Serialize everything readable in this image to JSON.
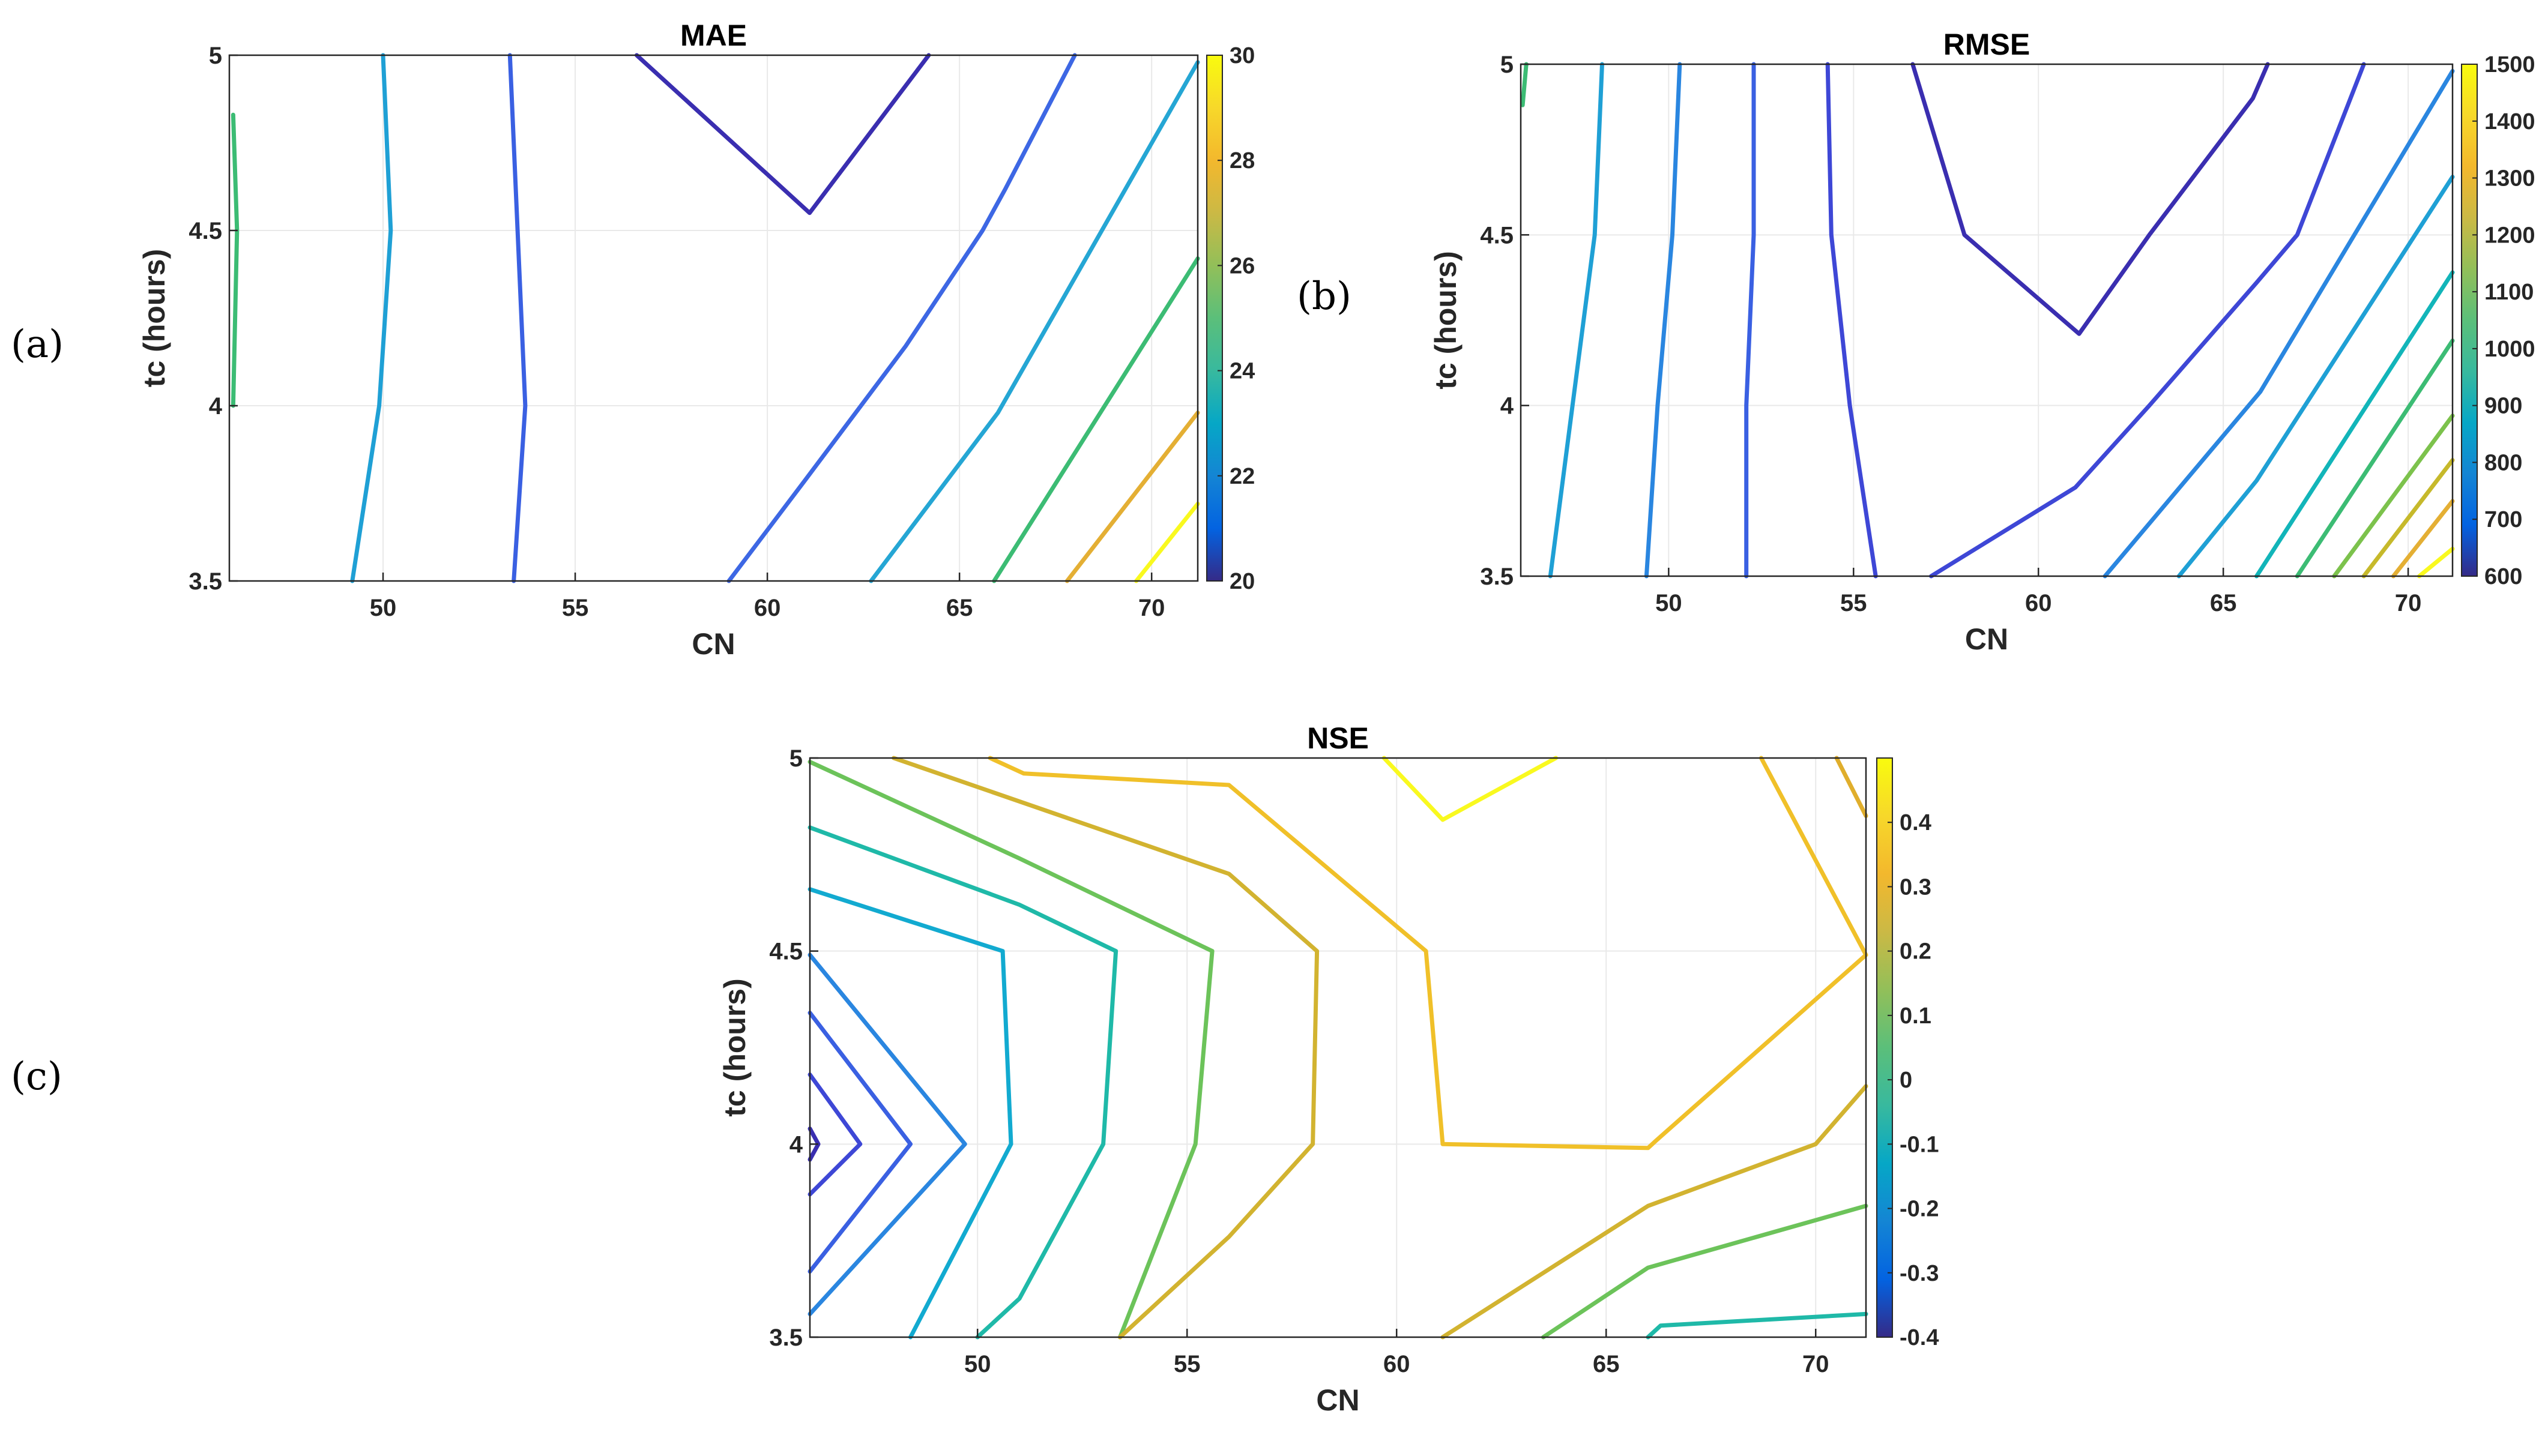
{
  "panel_labels": [
    "(a)",
    "(b)",
    "(c)"
  ],
  "chart_data": [
    {
      "type": "contour",
      "panel": "(a)",
      "title": "MAE",
      "xlabel": "CN",
      "ylabel": "tc (hours)",
      "xlim": [
        46,
        71.2
      ],
      "ylim": [
        3.5,
        5
      ],
      "xticks": [
        "50",
        "55",
        "60",
        "65",
        "70"
      ],
      "yticks": [
        "3.5",
        "4",
        "4.5",
        "5"
      ],
      "colorbar": {
        "min": 20,
        "max": 30,
        "ticks": [
          "20",
          "22",
          "24",
          "26",
          "28",
          "30"
        ]
      },
      "contours": [
        {
          "level": 26,
          "color": "#3cbc74",
          "points": [
            [
              46.1,
              4.83
            ],
            [
              46.2,
              4.5
            ],
            [
              46.1,
              4.0
            ]
          ]
        },
        {
          "level": 23.5,
          "color": "#1fa0d5",
          "points": [
            [
              50.0,
              5.0
            ],
            [
              50.2,
              4.5
            ],
            [
              49.9,
              4.0
            ],
            [
              49.2,
              3.5
            ]
          ]
        },
        {
          "level": 21.5,
          "color": "#3a60e2",
          "points": [
            [
              53.3,
              5.0
            ],
            [
              53.5,
              4.5
            ],
            [
              53.7,
              4.0
            ],
            [
              53.4,
              3.5
            ]
          ]
        },
        {
          "level": 20.5,
          "color": "#3a2eb0",
          "points": [
            [
              56.6,
              5.0
            ],
            [
              61.1,
              4.55
            ],
            [
              64.2,
              5.0
            ]
          ]
        },
        {
          "level": 22,
          "color": "#3d67e4",
          "points": [
            [
              59.0,
              3.5
            ],
            [
              61.0,
              3.79
            ],
            [
              63.6,
              4.17
            ],
            [
              65.6,
              4.5
            ],
            [
              66.2,
              4.62
            ],
            [
              68.0,
              5.0
            ]
          ]
        },
        {
          "level": 24,
          "color": "#25a6d4",
          "points": [
            [
              62.7,
              3.5
            ],
            [
              66.0,
              3.98
            ],
            [
              71.2,
              4.98
            ]
          ]
        },
        {
          "level": 26,
          "color": "#3cbc74",
          "points": [
            [
              65.9,
              3.5
            ],
            [
              71.2,
              4.42
            ]
          ]
        },
        {
          "level": 28,
          "color": "#e4af34",
          "points": [
            [
              67.8,
              3.5
            ],
            [
              71.2,
              3.98
            ]
          ]
        },
        {
          "level": 30,
          "color": "#f9f91f",
          "points": [
            [
              69.6,
              3.5
            ],
            [
              71.2,
              3.72
            ]
          ]
        }
      ]
    },
    {
      "type": "contour",
      "panel": "(b)",
      "title": "RMSE",
      "xlabel": "CN",
      "ylabel": "tc (hours)",
      "xlim": [
        46,
        71.2
      ],
      "ylim": [
        3.5,
        5
      ],
      "xticks": [
        "50",
        "55",
        "60",
        "65",
        "70"
      ],
      "yticks": [
        "3.5",
        "4",
        "4.5",
        "5"
      ],
      "colorbar": {
        "min": 600,
        "max": 1500,
        "ticks": [
          "600",
          "700",
          "800",
          "900",
          "1000",
          "1100",
          "1200",
          "1300",
          "1400",
          "1500"
        ]
      },
      "contours": [
        {
          "level": 1100,
          "color": "#3cbc74",
          "points": [
            [
              46.05,
              4.88
            ],
            [
              46.15,
              5.0
            ]
          ]
        },
        {
          "level": 950,
          "color": "#1fa0d5",
          "points": [
            [
              48.2,
              5.0
            ],
            [
              48.0,
              4.5
            ],
            [
              47.4,
              4.0
            ],
            [
              46.8,
              3.5
            ]
          ]
        },
        {
          "level": 850,
          "color": "#2a86e0",
          "points": [
            [
              50.3,
              5.0
            ],
            [
              50.1,
              4.5
            ],
            [
              49.7,
              4.0
            ],
            [
              49.4,
              3.5
            ]
          ]
        },
        {
          "level": 750,
          "color": "#3a60e2",
          "points": [
            [
              52.3,
              5.0
            ],
            [
              52.3,
              4.5
            ],
            [
              52.1,
              4.0
            ],
            [
              52.1,
              3.5
            ]
          ]
        },
        {
          "level": 700,
          "color": "#3e47d6",
          "points": [
            [
              54.3,
              5.0
            ],
            [
              54.4,
              4.5
            ],
            [
              54.9,
              4.0
            ],
            [
              55.6,
              3.5
            ]
          ]
        },
        {
          "level": 650,
          "color": "#3a2eb0",
          "points": [
            [
              56.6,
              5.0
            ],
            [
              58.0,
              4.5
            ],
            [
              61.1,
              4.21
            ],
            [
              63.0,
              4.5
            ],
            [
              65.8,
              4.9
            ],
            [
              66.2,
              5.0
            ]
          ]
        },
        {
          "level": 700,
          "color": "#3e47d6",
          "points": [
            [
              57.1,
              3.5
            ],
            [
              61.0,
              3.76
            ],
            [
              63.0,
              4.0
            ],
            [
              65.9,
              4.36
            ],
            [
              67.0,
              4.5
            ],
            [
              68.8,
              5.0
            ]
          ]
        },
        {
          "level": 850,
          "color": "#2a86e0",
          "points": [
            [
              61.8,
              3.5
            ],
            [
              66.0,
              4.04
            ],
            [
              71.2,
              4.98
            ]
          ]
        },
        {
          "level": 950,
          "color": "#1fa0d5",
          "points": [
            [
              63.8,
              3.5
            ],
            [
              65.9,
              3.78
            ],
            [
              71.2,
              4.67
            ]
          ]
        },
        {
          "level": 1050,
          "color": "#12b5b9",
          "points": [
            [
              65.9,
              3.5
            ],
            [
              71.2,
              4.39
            ]
          ]
        },
        {
          "level": 1150,
          "color": "#3cbc74",
          "points": [
            [
              67.0,
              3.5
            ],
            [
              71.2,
              4.19
            ]
          ]
        },
        {
          "level": 1200,
          "color": "#7cc24c",
          "points": [
            [
              68.0,
              3.5
            ],
            [
              71.2,
              3.97
            ]
          ]
        },
        {
          "level": 1300,
          "color": "#c6b92b",
          "points": [
            [
              68.8,
              3.5
            ],
            [
              71.2,
              3.84
            ]
          ]
        },
        {
          "level": 1400,
          "color": "#e4af34",
          "points": [
            [
              69.6,
              3.5
            ],
            [
              71.2,
              3.72
            ]
          ]
        },
        {
          "level": 1500,
          "color": "#f9f91f",
          "points": [
            [
              70.3,
              3.5
            ],
            [
              71.2,
              3.58
            ]
          ]
        }
      ]
    },
    {
      "type": "contour",
      "panel": "(c)",
      "title": "NSE",
      "xlabel": "CN",
      "ylabel": "tc (hours)",
      "xlim": [
        46,
        71.2
      ],
      "ylim": [
        3.5,
        5
      ],
      "xticks": [
        "50",
        "55",
        "60",
        "65",
        "70"
      ],
      "yticks": [
        "3.5",
        "4",
        "4.5",
        "5"
      ],
      "colorbar": {
        "min": -0.4,
        "max": 0.5,
        "ticks": [
          "-0.4",
          "-0.3",
          "-0.2",
          "-0.1",
          "0",
          "0.1",
          "0.2",
          "0.3",
          "0.4"
        ]
      },
      "contours": [
        {
          "level": -0.35,
          "color": "#3a2eb0",
          "points": [
            [
              46.0,
              4.04
            ],
            [
              46.2,
              4.0
            ],
            [
              46.0,
              3.96
            ]
          ]
        },
        {
          "level": -0.3,
          "color": "#3e47d6",
          "points": [
            [
              46.0,
              4.18
            ],
            [
              47.2,
              4.0
            ],
            [
              46.0,
              3.87
            ]
          ]
        },
        {
          "level": -0.2,
          "color": "#3a60e2",
          "points": [
            [
              46.0,
              4.34
            ],
            [
              48.4,
              4.0
            ],
            [
              46.0,
              3.67
            ]
          ]
        },
        {
          "level": -0.1,
          "color": "#2a86e0",
          "points": [
            [
              46.0,
              4.49
            ],
            [
              49.7,
              4.0
            ],
            [
              46.0,
              3.56
            ]
          ]
        },
        {
          "level": 0,
          "color": "#12aad0",
          "points": [
            [
              46.0,
              4.66
            ],
            [
              50.6,
              4.5
            ],
            [
              50.8,
              4.0
            ],
            [
              48.4,
              3.5
            ]
          ]
        },
        {
          "level": 0.1,
          "color": "#1fb9a8",
          "points": [
            [
              46.0,
              4.82
            ],
            [
              51.0,
              4.62
            ],
            [
              53.3,
              4.5
            ],
            [
              53.0,
              4.0
            ],
            [
              51.0,
              3.6
            ],
            [
              50.0,
              3.5
            ]
          ]
        },
        {
          "level": 0.2,
          "color": "#6cc35a",
          "points": [
            [
              46.0,
              4.99
            ],
            [
              51.0,
              4.74
            ],
            [
              55.6,
              4.5
            ],
            [
              55.2,
              4.0
            ],
            [
              53.4,
              3.5
            ]
          ]
        },
        {
          "level": 0.3,
          "color": "#d2b330",
          "points": [
            [
              48.0,
              5.0
            ],
            [
              56.0,
              4.7
            ],
            [
              58.1,
              4.5
            ],
            [
              58.0,
              4.0
            ],
            [
              56.0,
              3.76
            ],
            [
              53.4,
              3.5
            ]
          ]
        },
        {
          "level": 0.4,
          "color": "#f0c029",
          "points": [
            [
              50.3,
              5.0
            ],
            [
              51.1,
              4.96
            ],
            [
              56.0,
              4.93
            ],
            [
              60.7,
              4.5
            ],
            [
              61.1,
              4.0
            ],
            [
              66.0,
              3.99
            ],
            [
              66.2,
              4.01
            ],
            [
              71.2,
              4.49
            ],
            [
              68.7,
              5.0
            ]
          ]
        },
        {
          "level": 0.45,
          "color": "#f9f91f",
          "points": [
            [
              59.7,
              5.0
            ],
            [
              61.1,
              4.84
            ],
            [
              63.8,
              5.0
            ]
          ]
        },
        {
          "level": 0.35,
          "color": "#e0ae2c",
          "points": [
            [
              71.2,
              4.85
            ],
            [
              70.5,
              5.0
            ]
          ]
        },
        {
          "level": 0.3,
          "color": "#d2b330",
          "points": [
            [
              61.1,
              3.5
            ],
            [
              66.0,
              3.84
            ],
            [
              70.0,
              4.0
            ],
            [
              71.2,
              4.15
            ]
          ]
        },
        {
          "level": 0.2,
          "color": "#6cc35a",
          "points": [
            [
              63.5,
              3.5
            ],
            [
              66.0,
              3.68
            ],
            [
              71.2,
              3.84
            ]
          ]
        },
        {
          "level": 0.1,
          "color": "#1fb9a8",
          "points": [
            [
              66.0,
              3.5
            ],
            [
              66.3,
              3.53
            ],
            [
              71.2,
              3.56
            ]
          ]
        }
      ]
    }
  ]
}
